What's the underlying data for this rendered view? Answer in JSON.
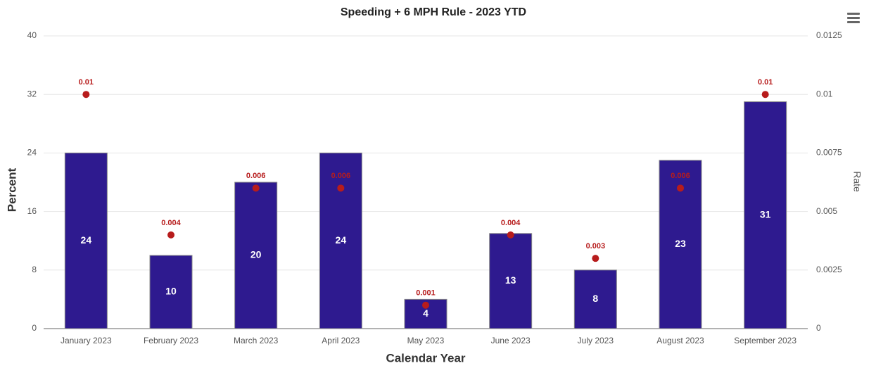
{
  "chart_data": {
    "type": "bar",
    "title": "Speeding + 6 MPH Rule - 2023 YTD",
    "x_label": "Calendar Year",
    "y_label": "Percent",
    "y2_label": "Rate",
    "categories": [
      "January 2023",
      "February 2023",
      "March 2023",
      "April 2023",
      "May 2023",
      "June 2023",
      "July 2023",
      "August 2023",
      "September 2023"
    ],
    "series": [
      {
        "type": "bar",
        "color": "#2e1a8f",
        "values": [
          24,
          10,
          20,
          24,
          4,
          13,
          8,
          23,
          31
        ]
      },
      {
        "type": "scatter",
        "axis": "y2",
        "color": "#b71c1c",
        "values": [
          0.01,
          0.004,
          0.006,
          0.006,
          0.001,
          0.004,
          0.003,
          0.006,
          0.01
        ]
      }
    ],
    "ylim": [
      0,
      40
    ],
    "yticks": [
      0,
      8,
      16,
      24,
      32,
      40
    ],
    "y2lim": [
      0,
      0.0125
    ],
    "y2ticks": [
      0,
      0.0025,
      0.005,
      0.0075,
      0.01,
      0.0125
    ],
    "grid": true
  }
}
